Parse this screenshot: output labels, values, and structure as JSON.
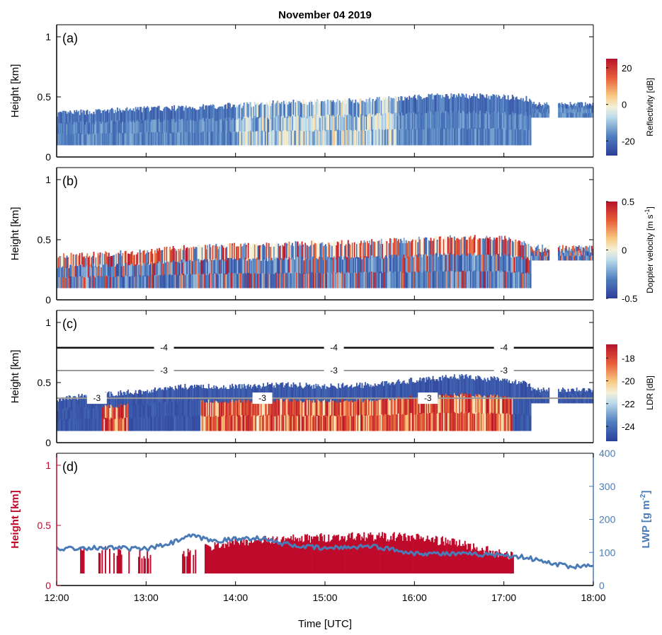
{
  "figure_title": "November 04 2019",
  "x_axis": {
    "label": "Time [UTC]",
    "ticks": [
      "12:00",
      "13:00",
      "14:00",
      "15:00",
      "16:00",
      "17:00",
      "18:00"
    ],
    "range_hours": [
      12,
      18
    ]
  },
  "chart_data": [
    {
      "panel": "(a)",
      "type": "heatmap",
      "ylabel": "Height [km]",
      "yticks": [
        "0",
        "0.5",
        "1"
      ],
      "ylim": [
        0,
        1.1
      ],
      "colorbar": {
        "label": "Reflectivity [dB]",
        "ticks": [
          "20",
          "0",
          "-20"
        ],
        "range": [
          -28,
          25
        ],
        "colormap": "diverging-blue-red"
      },
      "cloud_base_km": 0.1,
      "cloud_top_km": {
        "x": [
          12.0,
          12.5,
          13.0,
          13.5,
          14.0,
          14.5,
          15.0,
          15.5,
          16.0,
          16.5,
          17.0,
          17.3
        ],
        "y": [
          0.36,
          0.38,
          0.4,
          0.41,
          0.43,
          0.45,
          0.46,
          0.47,
          0.5,
          0.51,
          0.5,
          0.48
        ]
      },
      "high_values_window_hours": [
        14.0,
        15.8
      ]
    },
    {
      "panel": "(b)",
      "type": "heatmap",
      "ylabel": "Height [km]",
      "yticks": [
        "0",
        "0.5",
        "1"
      ],
      "ylim": [
        0,
        1.1
      ],
      "colorbar": {
        "label": "Doppler velocity [m s",
        "label_sup": "-1",
        "label_end": "]",
        "ticks": [
          "0.5",
          "0",
          "-0.5"
        ],
        "range": [
          -0.5,
          0.5
        ],
        "colormap": "diverging-blue-red"
      },
      "cloud_base_km": 0.1,
      "cloud_top_km": {
        "x": [
          12.0,
          12.5,
          13.0,
          13.5,
          14.0,
          14.5,
          15.0,
          15.5,
          16.0,
          16.5,
          17.0,
          17.3
        ],
        "y": [
          0.36,
          0.38,
          0.4,
          0.44,
          0.45,
          0.46,
          0.47,
          0.48,
          0.5,
          0.52,
          0.51,
          0.45
        ]
      }
    },
    {
      "panel": "(c)",
      "type": "heatmap",
      "ylabel": "Height [km]",
      "yticks": [
        "0",
        "0.5",
        "1"
      ],
      "ylim": [
        0,
        1.1
      ],
      "colorbar": {
        "label": "LDR [dB]",
        "ticks": [
          "-18",
          "-20",
          "-22",
          "-24"
        ],
        "range": [
          -25.3,
          -16.8
        ],
        "colormap": "diverging-blue-red"
      },
      "cloud_base_km": 0.1,
      "cloud_top_km": {
        "x": [
          12.0,
          12.5,
          13.0,
          13.5,
          14.0,
          14.5,
          15.0,
          15.5,
          16.0,
          16.5,
          17.0,
          17.3
        ],
        "y": [
          0.36,
          0.4,
          0.43,
          0.47,
          0.47,
          0.48,
          0.47,
          0.48,
          0.52,
          0.55,
          0.52,
          0.48
        ]
      },
      "contours": [
        {
          "label": "-4",
          "height_km": 0.79,
          "color": "#111111",
          "label_hours": [
            13.2,
            15.1,
            17.0
          ]
        },
        {
          "label": "-3",
          "height_km": 0.6,
          "color": "#9a9a9a",
          "label_hours": [
            13.2,
            15.1,
            17.0
          ]
        },
        {
          "label": "-3",
          "height_km": 0.37,
          "color": "#9a9a9a",
          "label_hours": [
            12.45,
            14.3,
            16.15
          ]
        }
      ]
    },
    {
      "panel": "(d)",
      "type": "area",
      "ylabel": "Height [km]",
      "yticks": [
        "0",
        "0.5",
        "1"
      ],
      "ylim": [
        0,
        1.1
      ],
      "y2label": "LWP [g m",
      "y2label_sup": "-2",
      "y2label_end": "]",
      "y2ticks": [
        "0",
        "100",
        "200",
        "300",
        "400"
      ],
      "y2lim": [
        0,
        400
      ],
      "series": [
        {
          "x": [
            12.5,
            13.0,
            13.5,
            14.0,
            14.5,
            15.0,
            15.5,
            16.0,
            16.5,
            17.0
          ],
          "y": [
            0.29,
            0.26,
            0.28,
            0.37,
            0.38,
            0.4,
            0.41,
            0.4,
            0.35,
            0.25
          ],
          "color": "#bf0a2b"
        },
        {
          "name": "LWP",
          "x": [
            12.0,
            12.5,
            13.0,
            13.25,
            13.5,
            13.75,
            14.0,
            14.25,
            14.5,
            14.75,
            15.0,
            15.5,
            16.0,
            16.5,
            17.0,
            17.25,
            17.5,
            17.75,
            18.0
          ],
          "y": [
            112,
            115,
            110,
            125,
            150,
            135,
            140,
            145,
            128,
            118,
            112,
            120,
            98,
            95,
            93,
            85,
            68,
            58,
            60
          ],
          "color": "#4a7bb7"
        }
      ]
    }
  ]
}
